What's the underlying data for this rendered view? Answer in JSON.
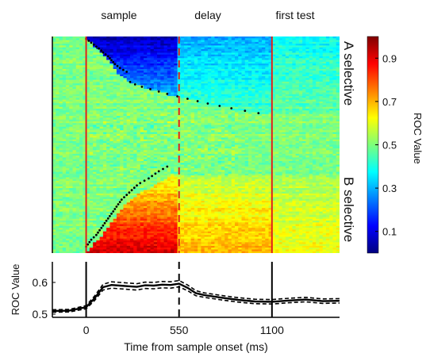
{
  "chart_data": [
    {
      "type": "heatmap",
      "epochs": [
        "sample",
        "delay",
        "first test"
      ],
      "row_groups": [
        "A selective",
        "B selective"
      ],
      "colorbar": {
        "label": "ROC Value",
        "ticks": [
          "0.1",
          "0.3",
          "0.5",
          "0.7",
          "0.9"
        ],
        "range": [
          0.0,
          1.0
        ]
      },
      "xlim": [
        -200,
        1500
      ],
      "event_lines": [
        0,
        550,
        1100
      ],
      "dashed_event": 550,
      "n_rows": 120,
      "a_selective_onsets": [
        0,
        15,
        30,
        45,
        60,
        75,
        90,
        100,
        115,
        130,
        140,
        150,
        160,
        170,
        185,
        200,
        220,
        240,
        260,
        290,
        330,
        380,
        430,
        480,
        540,
        600,
        660,
        720,
        790,
        860,
        940,
        1020
      ],
      "b_selective_onsets": [
        480,
        455,
        430,
        410,
        390,
        370,
        345,
        320,
        300,
        285,
        270,
        255,
        240,
        225,
        210,
        200,
        190,
        180,
        170,
        160,
        150,
        140,
        130,
        120,
        110,
        100,
        90,
        80,
        70,
        60,
        45,
        30,
        20,
        10,
        0
      ]
    },
    {
      "type": "line",
      "ylabel": "ROC Value",
      "xlabel": "Time from sample onset (ms)",
      "xlim": [
        -200,
        1500
      ],
      "ylim": [
        0.49,
        0.665
      ],
      "xticks": [
        "0",
        "550",
        "1100"
      ],
      "yticks": [
        "0.5",
        "0.6"
      ],
      "event_lines": [
        0,
        550,
        1100
      ],
      "dashed_event": 550,
      "series": [
        {
          "style": "mean",
          "x": [
            -200,
            -100,
            0,
            50,
            100,
            150,
            200,
            250,
            300,
            350,
            400,
            450,
            500,
            550,
            600,
            650,
            700,
            800,
            900,
            1000,
            1100,
            1200,
            1300,
            1400,
            1500
          ],
          "y": [
            0.51,
            0.511,
            0.522,
            0.55,
            0.585,
            0.592,
            0.59,
            0.588,
            0.586,
            0.591,
            0.59,
            0.593,
            0.592,
            0.596,
            0.583,
            0.566,
            0.56,
            0.552,
            0.545,
            0.54,
            0.539,
            0.543,
            0.546,
            0.541,
            0.542
          ]
        },
        {
          "style": "upper",
          "x": [
            -200,
            -100,
            0,
            50,
            100,
            150,
            200,
            250,
            300,
            350,
            400,
            450,
            500,
            550,
            600,
            650,
            700,
            800,
            900,
            1000,
            1100,
            1200,
            1300,
            1400,
            1500
          ],
          "y": [
            0.514,
            0.515,
            0.527,
            0.557,
            0.594,
            0.602,
            0.6,
            0.598,
            0.596,
            0.601,
            0.6,
            0.603,
            0.602,
            0.606,
            0.592,
            0.574,
            0.567,
            0.559,
            0.552,
            0.547,
            0.546,
            0.55,
            0.553,
            0.548,
            0.549
          ]
        },
        {
          "style": "lower",
          "x": [
            -200,
            -100,
            0,
            50,
            100,
            150,
            200,
            250,
            300,
            350,
            400,
            450,
            500,
            550,
            600,
            650,
            700,
            800,
            900,
            1000,
            1100,
            1200,
            1300,
            1400,
            1500
          ],
          "y": [
            0.506,
            0.507,
            0.517,
            0.543,
            0.576,
            0.582,
            0.58,
            0.578,
            0.576,
            0.581,
            0.58,
            0.583,
            0.582,
            0.586,
            0.574,
            0.558,
            0.553,
            0.545,
            0.538,
            0.533,
            0.532,
            0.536,
            0.539,
            0.534,
            0.535
          ]
        }
      ]
    }
  ]
}
